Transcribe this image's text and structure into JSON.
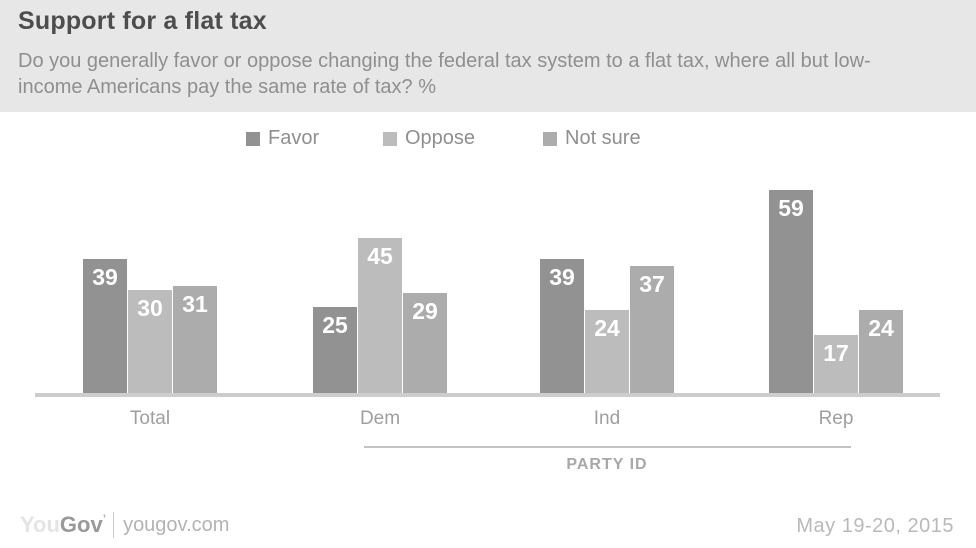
{
  "header": {
    "title": "Support for a flat tax",
    "subtitle": "Do you generally favor or oppose changing the federal tax system to a flat tax, where all but low-income Americans pay the same rate of tax? %"
  },
  "chart_data": {
    "type": "bar",
    "categories": [
      "Total",
      "Dem",
      "Ind",
      "Rep"
    ],
    "series": [
      {
        "name": "Favor",
        "values": [
          39,
          25,
          39,
          59
        ],
        "color": "#929292"
      },
      {
        "name": "Oppose",
        "values": [
          30,
          45,
          24,
          17
        ],
        "color": "#bcbcbc"
      },
      {
        "name": "Not sure",
        "values": [
          31,
          29,
          37,
          24
        ],
        "color": "#acacac"
      }
    ],
    "title": "Support for a flat tax",
    "xlabel": "",
    "ylabel": "",
    "ylim": [
      0,
      62
    ],
    "grid": false,
    "legend_position": "top",
    "value_labels": "inside-top",
    "group_axis_label": "PARTY ID",
    "group_axis_categories": [
      "Dem",
      "Ind",
      "Rep"
    ],
    "axis_line_color": "#cdcdcd"
  },
  "footer": {
    "logo_you": "You",
    "logo_gov": "Gov",
    "logo_mark": "’",
    "site": "yougov.com",
    "date": "May 19-20, 2015"
  }
}
